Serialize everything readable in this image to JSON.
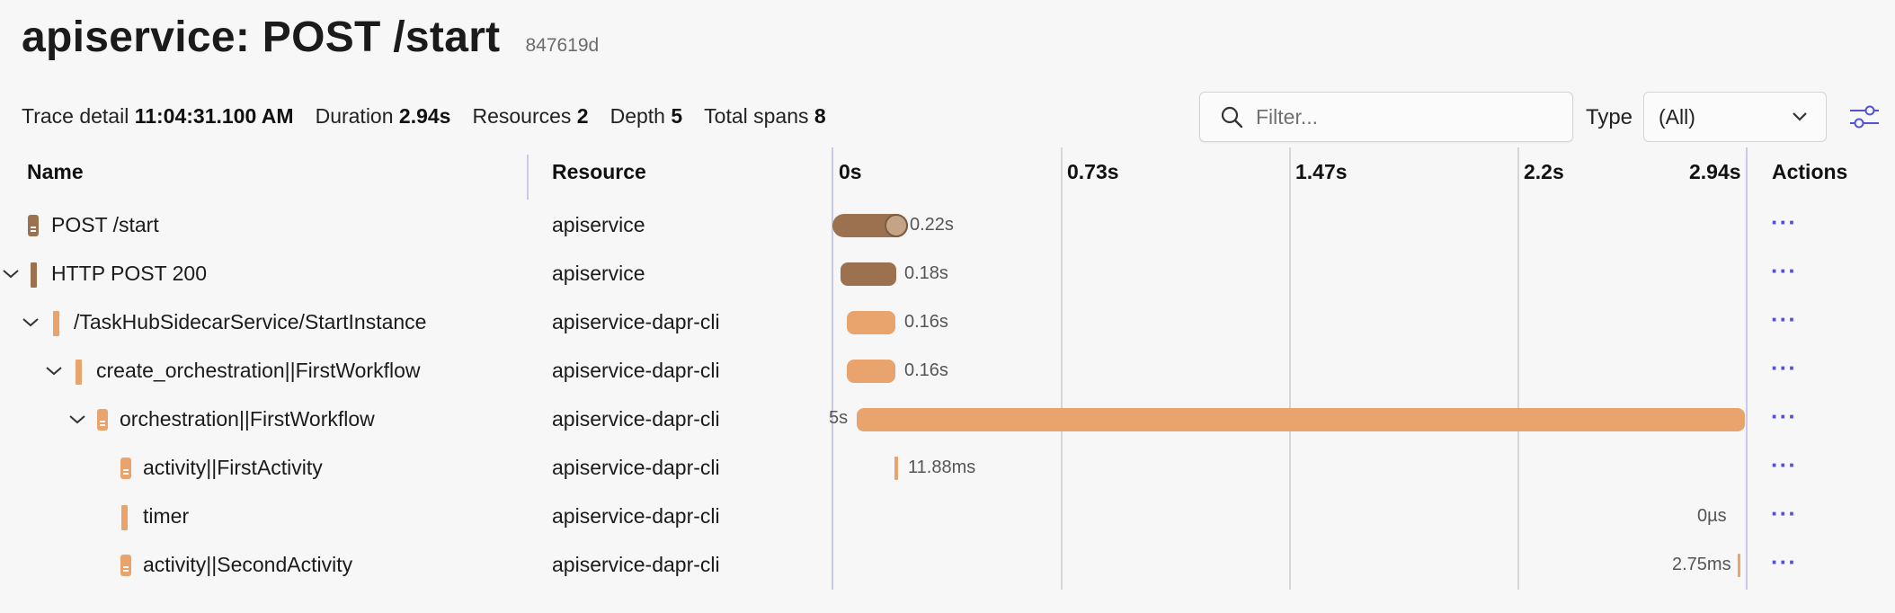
{
  "header": {
    "title": "apiservice: POST /start",
    "trace_id": "847619d"
  },
  "meta": {
    "trace_detail_label": "Trace detail",
    "trace_detail_value": "11:04:31.100 AM",
    "duration_label": "Duration",
    "duration_value": "2.94s",
    "resources_label": "Resources",
    "resources_value": "2",
    "depth_label": "Depth",
    "depth_value": "5",
    "total_spans_label": "Total spans",
    "total_spans_value": "8"
  },
  "filter": {
    "placeholder": "Filter..."
  },
  "type_filter": {
    "label": "Type",
    "selected": "(All)"
  },
  "columns": {
    "name": "Name",
    "resource": "Resource",
    "actions": "Actions"
  },
  "ticks": [
    "0s",
    "0.73s",
    "1.47s",
    "2.2s",
    "2.94s"
  ],
  "colors": {
    "apiservice": "#9b7150",
    "dapr": "#e8a46c",
    "accent": "#5252d8"
  },
  "rows": [
    {
      "name": "POST /start",
      "resource": "apiservice",
      "duration": "0.22s",
      "actions": "···"
    },
    {
      "name": "HTTP POST 200",
      "resource": "apiservice",
      "duration": "0.18s",
      "actions": "···"
    },
    {
      "name": "/TaskHubSidecarService/StartInstance",
      "resource": "apiservice-dapr-cli",
      "duration": "0.16s",
      "actions": "···"
    },
    {
      "name": "create_orchestration||FirstWorkflow",
      "resource": "apiservice-dapr-cli",
      "duration": "0.16s",
      "actions": "···"
    },
    {
      "name": "orchestration||FirstWorkflow",
      "resource": "apiservice-dapr-cli",
      "duration": "5s",
      "actions": "···"
    },
    {
      "name": "activity||FirstActivity",
      "resource": "apiservice-dapr-cli",
      "duration": "11.88ms",
      "actions": "···"
    },
    {
      "name": "timer",
      "resource": "apiservice-dapr-cli",
      "duration": "0µs",
      "actions": "···"
    },
    {
      "name": "activity||SecondActivity",
      "resource": "apiservice-dapr-cli",
      "duration": "2.75ms",
      "actions": "···"
    }
  ]
}
